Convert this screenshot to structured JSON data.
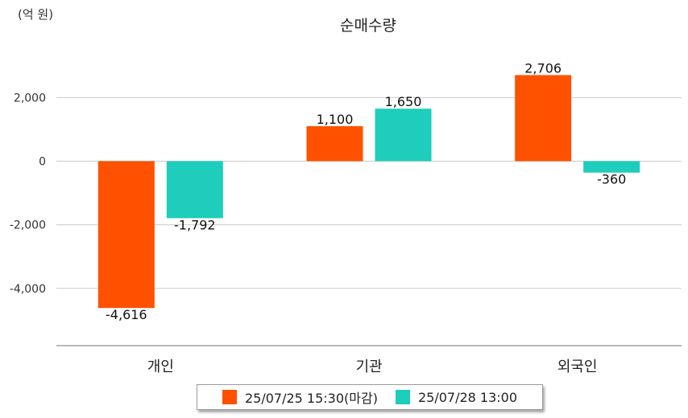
{
  "chart_data": {
    "type": "bar",
    "title": "순매수량",
    "unit_label": "(억 원)",
    "categories": [
      "개인",
      "기관",
      "외국인"
    ],
    "series": [
      {
        "name": "25/07/25 15:30(마감)",
        "color": "#ff5100",
        "values": [
          -4616,
          1100,
          2706
        ],
        "labels": [
          "-4,616",
          "1,100",
          "2,706"
        ]
      },
      {
        "name": "25/07/28 13:00",
        "color": "#1ecdbb",
        "values": [
          -1792,
          1650,
          -360
        ],
        "labels": [
          "-1,792",
          "1,650",
          "-360"
        ]
      }
    ],
    "yticks": [
      2000,
      0,
      -2000,
      -4000
    ],
    "ytick_labels": [
      "2,000",
      "0",
      "-2,000",
      "-4,000"
    ],
    "ylim": [
      -5800,
      3500
    ],
    "grid": true,
    "legend_position": "bottom"
  }
}
